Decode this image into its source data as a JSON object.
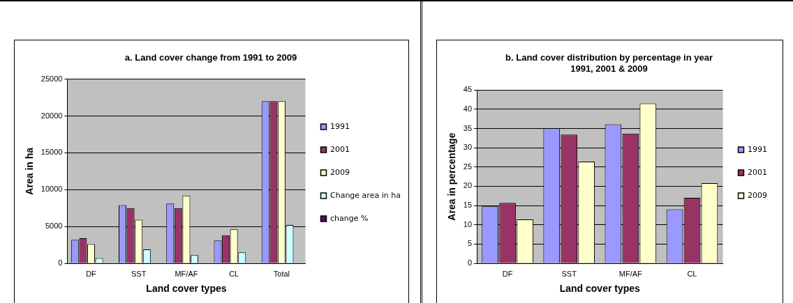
{
  "chart_data": [
    {
      "type": "bar",
      "title": "a. Land cover change from 1991 to 2009",
      "xlabel": "Land cover types",
      "ylabel": "Area in ha",
      "categories": [
        "DF",
        "SST",
        "MF/AF",
        "CL",
        "Total"
      ],
      "ylim": [
        0,
        25000
      ],
      "yticks": [
        0,
        5000,
        10000,
        15000,
        20000,
        25000
      ],
      "grid": "y",
      "legend": "right",
      "series": [
        {
          "name": "1991",
          "color": "#9999ff",
          "values": [
            3200,
            7900,
            8100,
            3100,
            22000
          ]
        },
        {
          "name": "2001",
          "color": "#993366",
          "values": [
            3400,
            7500,
            7500,
            3800,
            22000
          ]
        },
        {
          "name": "2009",
          "color": "#ffffcc",
          "values": [
            2600,
            5900,
            9200,
            4600,
            22000
          ]
        },
        {
          "name": "Change area in ha",
          "color": "#ccffff",
          "values": [
            700,
            1900,
            1100,
            1500,
            5200
          ]
        },
        {
          "name": "change %",
          "color": "#660066",
          "values": [
            0,
            0,
            0,
            0,
            0
          ]
        }
      ]
    },
    {
      "type": "bar",
      "title": "b. Land cover distribution by percentage in year 1991, 2001 & 2009",
      "xlabel": "Land cover types",
      "ylabel": "Area in percentage",
      "categories": [
        "DF",
        "SST",
        "MF/AF",
        "CL"
      ],
      "ylim": [
        0,
        45
      ],
      "yticks": [
        0,
        5,
        10,
        15,
        20,
        25,
        30,
        35,
        40,
        45
      ],
      "grid": "y",
      "legend": "right",
      "series": [
        {
          "name": "1991",
          "color": "#9999ff",
          "values": [
            14.8,
            35.1,
            36.1,
            14
          ]
        },
        {
          "name": "2001",
          "color": "#993366",
          "values": [
            15.7,
            33.4,
            33.7,
            17
          ]
        },
        {
          "name": "2009",
          "color": "#ffffcc",
          "values": [
            11.4,
            26.4,
            41.5,
            20.8
          ]
        }
      ]
    }
  ]
}
